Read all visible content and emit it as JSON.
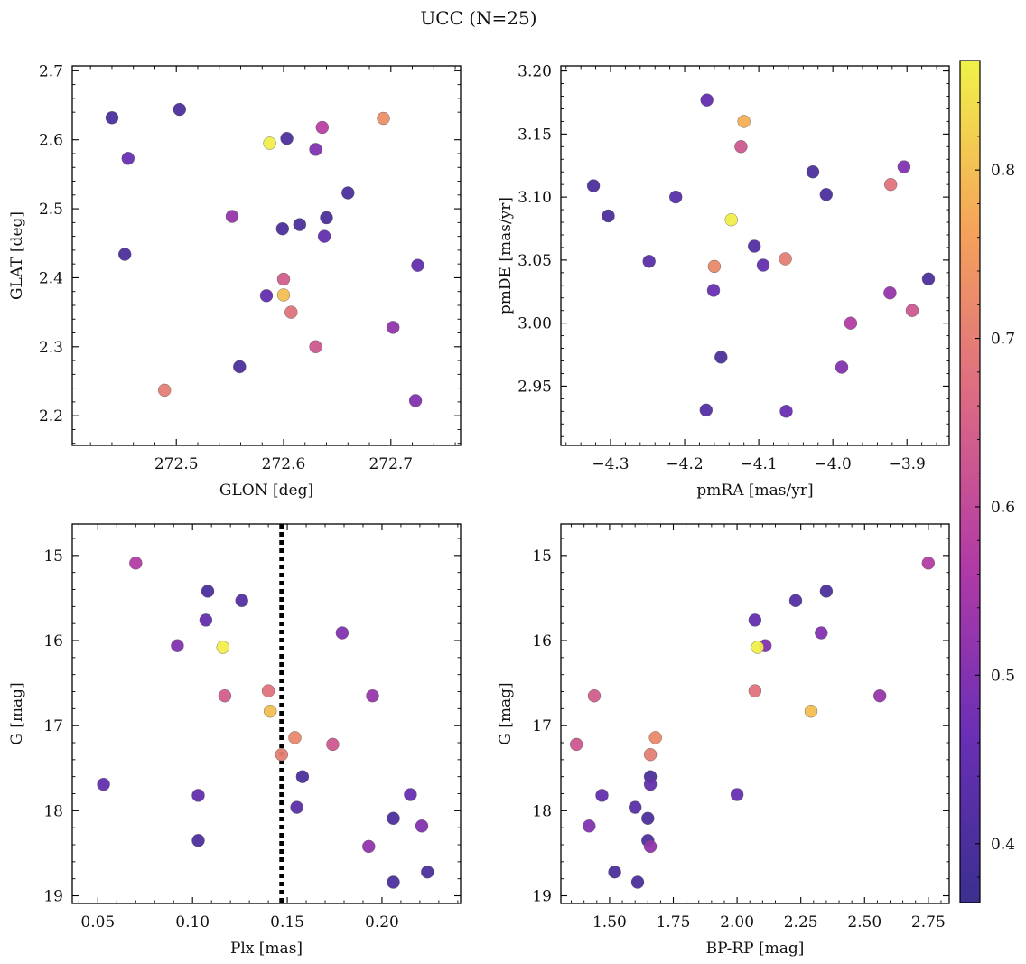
{
  "figure": {
    "title": "UCC (N=25)"
  },
  "colorbar": {
    "range": [
      0.365,
      0.865
    ],
    "ticks": [
      0.4,
      0.5,
      0.6,
      0.7,
      0.8
    ],
    "tick_labels": [
      "0.4",
      "0.5",
      "0.6",
      "0.7",
      "0.8"
    ],
    "stops": [
      {
        "v": 0.0,
        "color": "#3b2f8f"
      },
      {
        "v": 0.2,
        "color": "#6a2fb5"
      },
      {
        "v": 0.4,
        "color": "#b13aa6"
      },
      {
        "v": 0.6,
        "color": "#dc6a83"
      },
      {
        "v": 0.8,
        "color": "#f5a35a"
      },
      {
        "v": 1.0,
        "color": "#f0f249"
      }
    ]
  },
  "chart_data": [
    {
      "id": "sky",
      "type": "scatter",
      "xlabel": "GLON [deg]",
      "ylabel": "GLAT [deg]",
      "xlim": [
        272.403,
        272.765
      ],
      "ylim": [
        2.157,
        2.707
      ],
      "invert_y": false,
      "xticks": [
        272.5,
        272.6,
        272.7
      ],
      "xtick_labels": [
        "272.5",
        "272.6",
        "272.7"
      ],
      "yticks": [
        2.2,
        2.3,
        2.4,
        2.5,
        2.6,
        2.7
      ],
      "ytick_labels": [
        "2.2",
        "2.3",
        "2.4",
        "2.5",
        "2.6",
        "2.7"
      ],
      "points": [
        {
          "x": 272.44,
          "y": 2.632,
          "c": 0.4
        },
        {
          "x": 272.503,
          "y": 2.644,
          "c": 0.4
        },
        {
          "x": 272.455,
          "y": 2.573,
          "c": 0.46
        },
        {
          "x": 272.587,
          "y": 2.595,
          "c": 0.86
        },
        {
          "x": 272.603,
          "y": 2.602,
          "c": 0.4
        },
        {
          "x": 272.63,
          "y": 2.586,
          "c": 0.5
        },
        {
          "x": 272.636,
          "y": 2.618,
          "c": 0.58
        },
        {
          "x": 272.693,
          "y": 2.631,
          "c": 0.73
        },
        {
          "x": 272.66,
          "y": 2.523,
          "c": 0.4
        },
        {
          "x": 272.64,
          "y": 2.487,
          "c": 0.4
        },
        {
          "x": 272.615,
          "y": 2.477,
          "c": 0.4
        },
        {
          "x": 272.599,
          "y": 2.471,
          "c": 0.4
        },
        {
          "x": 272.638,
          "y": 2.46,
          "c": 0.45
        },
        {
          "x": 272.552,
          "y": 2.489,
          "c": 0.53
        },
        {
          "x": 272.452,
          "y": 2.434,
          "c": 0.4
        },
        {
          "x": 272.725,
          "y": 2.418,
          "c": 0.45
        },
        {
          "x": 272.6,
          "y": 2.398,
          "c": 0.64
        },
        {
          "x": 272.584,
          "y": 2.374,
          "c": 0.45
        },
        {
          "x": 272.6,
          "y": 2.375,
          "c": 0.8
        },
        {
          "x": 272.607,
          "y": 2.35,
          "c": 0.68
        },
        {
          "x": 272.702,
          "y": 2.328,
          "c": 0.52
        },
        {
          "x": 272.63,
          "y": 2.3,
          "c": 0.63
        },
        {
          "x": 272.559,
          "y": 2.271,
          "c": 0.4
        },
        {
          "x": 272.489,
          "y": 2.237,
          "c": 0.7
        },
        {
          "x": 272.723,
          "y": 2.222,
          "c": 0.5
        }
      ]
    },
    {
      "id": "pm",
      "type": "scatter",
      "xlabel": "pmRA [mas/yr]",
      "ylabel": "pmDE [mas/yr]",
      "xlim": [
        -4.367,
        -3.843
      ],
      "ylim": [
        2.903,
        3.204
      ],
      "invert_y": false,
      "xticks": [
        -4.3,
        -4.2,
        -4.1,
        -4.0,
        -3.9
      ],
      "xtick_labels": [
        "−4.3",
        "−4.2",
        "−4.1",
        "−4.0",
        "−3.9"
      ],
      "yticks": [
        2.95,
        3.0,
        3.05,
        3.1,
        3.15,
        3.2
      ],
      "ytick_labels": [
        "2.95",
        "3.00",
        "3.05",
        "3.10",
        "3.15",
        "3.20"
      ],
      "points": [
        {
          "x": -4.17,
          "y": 3.177,
          "c": 0.45
        },
        {
          "x": -4.12,
          "y": 3.16,
          "c": 0.78
        },
        {
          "x": -4.124,
          "y": 3.14,
          "c": 0.63
        },
        {
          "x": -4.027,
          "y": 3.12,
          "c": 0.4
        },
        {
          "x": -3.904,
          "y": 3.124,
          "c": 0.5
        },
        {
          "x": -4.323,
          "y": 3.109,
          "c": 0.4
        },
        {
          "x": -4.212,
          "y": 3.1,
          "c": 0.43
        },
        {
          "x": -4.009,
          "y": 3.102,
          "c": 0.4
        },
        {
          "x": -3.922,
          "y": 3.11,
          "c": 0.68
        },
        {
          "x": -4.303,
          "y": 3.085,
          "c": 0.4
        },
        {
          "x": -4.137,
          "y": 3.082,
          "c": 0.86
        },
        {
          "x": -4.106,
          "y": 3.061,
          "c": 0.42
        },
        {
          "x": -4.064,
          "y": 3.051,
          "c": 0.7
        },
        {
          "x": -4.248,
          "y": 3.049,
          "c": 0.43
        },
        {
          "x": -4.16,
          "y": 3.045,
          "c": 0.72
        },
        {
          "x": -4.094,
          "y": 3.046,
          "c": 0.45
        },
        {
          "x": -3.871,
          "y": 3.035,
          "c": 0.4
        },
        {
          "x": -4.161,
          "y": 3.026,
          "c": 0.46
        },
        {
          "x": -3.923,
          "y": 3.024,
          "c": 0.53
        },
        {
          "x": -3.893,
          "y": 3.01,
          "c": 0.63
        },
        {
          "x": -3.976,
          "y": 3.0,
          "c": 0.57
        },
        {
          "x": -4.151,
          "y": 2.973,
          "c": 0.4
        },
        {
          "x": -3.988,
          "y": 2.965,
          "c": 0.5
        },
        {
          "x": -4.171,
          "y": 2.931,
          "c": 0.42
        },
        {
          "x": -4.063,
          "y": 2.93,
          "c": 0.46
        }
      ]
    },
    {
      "id": "plx",
      "type": "scatter",
      "xlabel": "Plx [mas]",
      "ylabel": "G [mag]",
      "xlim": [
        0.0365,
        0.2415
      ],
      "ylim": [
        14.63,
        19.09
      ],
      "invert_y": true,
      "vline": {
        "x": 0.147,
        "style": "dotted"
      },
      "xticks": [
        0.05,
        0.1,
        0.15,
        0.2
      ],
      "xtick_labels": [
        "0.05",
        "0.10",
        "0.15",
        "0.20"
      ],
      "yticks": [
        15,
        16,
        17,
        18,
        19
      ],
      "ytick_labels": [
        "15",
        "16",
        "17",
        "18",
        "19"
      ],
      "points": [
        {
          "x": 0.07,
          "y": 15.09,
          "c": 0.57
        },
        {
          "x": 0.108,
          "y": 15.42,
          "c": 0.4
        },
        {
          "x": 0.126,
          "y": 15.53,
          "c": 0.42
        },
        {
          "x": 0.107,
          "y": 15.76,
          "c": 0.45
        },
        {
          "x": 0.179,
          "y": 15.91,
          "c": 0.5
        },
        {
          "x": 0.092,
          "y": 16.06,
          "c": 0.5
        },
        {
          "x": 0.116,
          "y": 16.08,
          "c": 0.86
        },
        {
          "x": 0.14,
          "y": 16.59,
          "c": 0.68
        },
        {
          "x": 0.117,
          "y": 16.65,
          "c": 0.64
        },
        {
          "x": 0.195,
          "y": 16.65,
          "c": 0.53
        },
        {
          "x": 0.141,
          "y": 16.83,
          "c": 0.8
        },
        {
          "x": 0.154,
          "y": 17.14,
          "c": 0.72
        },
        {
          "x": 0.174,
          "y": 17.22,
          "c": 0.63
        },
        {
          "x": 0.147,
          "y": 17.34,
          "c": 0.7
        },
        {
          "x": 0.158,
          "y": 17.6,
          "c": 0.4
        },
        {
          "x": 0.053,
          "y": 17.69,
          "c": 0.45
        },
        {
          "x": 0.103,
          "y": 17.82,
          "c": 0.45
        },
        {
          "x": 0.215,
          "y": 17.81,
          "c": 0.46
        },
        {
          "x": 0.155,
          "y": 17.96,
          "c": 0.43
        },
        {
          "x": 0.206,
          "y": 18.09,
          "c": 0.4
        },
        {
          "x": 0.221,
          "y": 18.18,
          "c": 0.5
        },
        {
          "x": 0.103,
          "y": 18.35,
          "c": 0.4
        },
        {
          "x": 0.193,
          "y": 18.42,
          "c": 0.52
        },
        {
          "x": 0.224,
          "y": 18.72,
          "c": 0.4
        },
        {
          "x": 0.206,
          "y": 18.84,
          "c": 0.4
        }
      ]
    },
    {
      "id": "cmd",
      "type": "scatter",
      "xlabel": "BP-RP [mag]",
      "ylabel": "G [mag]",
      "xlim": [
        1.309,
        2.832
      ],
      "ylim": [
        14.63,
        19.09
      ],
      "invert_y": true,
      "xticks": [
        1.5,
        1.75,
        2.0,
        2.25,
        2.5,
        2.75
      ],
      "xtick_labels": [
        "1.50",
        "1.75",
        "2.00",
        "2.25",
        "2.50",
        "2.75"
      ],
      "yticks": [
        15,
        16,
        17,
        18,
        19
      ],
      "ytick_labels": [
        "15",
        "16",
        "17",
        "18",
        "19"
      ],
      "points": [
        {
          "x": 2.75,
          "y": 15.09,
          "c": 0.57
        },
        {
          "x": 2.35,
          "y": 15.42,
          "c": 0.4
        },
        {
          "x": 2.23,
          "y": 15.53,
          "c": 0.42
        },
        {
          "x": 2.07,
          "y": 15.76,
          "c": 0.45
        },
        {
          "x": 2.33,
          "y": 15.91,
          "c": 0.5
        },
        {
          "x": 2.11,
          "y": 16.06,
          "c": 0.5
        },
        {
          "x": 2.08,
          "y": 16.08,
          "c": 0.86
        },
        {
          "x": 2.07,
          "y": 16.59,
          "c": 0.68
        },
        {
          "x": 1.44,
          "y": 16.65,
          "c": 0.64
        },
        {
          "x": 2.56,
          "y": 16.65,
          "c": 0.53
        },
        {
          "x": 2.29,
          "y": 16.83,
          "c": 0.8
        },
        {
          "x": 1.68,
          "y": 17.14,
          "c": 0.72
        },
        {
          "x": 1.37,
          "y": 17.22,
          "c": 0.63
        },
        {
          "x": 1.66,
          "y": 17.34,
          "c": 0.7
        },
        {
          "x": 1.66,
          "y": 17.6,
          "c": 0.4
        },
        {
          "x": 1.66,
          "y": 17.69,
          "c": 0.45
        },
        {
          "x": 1.47,
          "y": 17.82,
          "c": 0.45
        },
        {
          "x": 2.0,
          "y": 17.81,
          "c": 0.46
        },
        {
          "x": 1.6,
          "y": 17.96,
          "c": 0.43
        },
        {
          "x": 1.65,
          "y": 18.09,
          "c": 0.4
        },
        {
          "x": 1.42,
          "y": 18.18,
          "c": 0.5
        },
        {
          "x": 1.65,
          "y": 18.35,
          "c": 0.4
        },
        {
          "x": 1.66,
          "y": 18.42,
          "c": 0.52
        },
        {
          "x": 1.52,
          "y": 18.72,
          "c": 0.4
        },
        {
          "x": 1.61,
          "y": 18.84,
          "c": 0.4
        }
      ]
    }
  ]
}
